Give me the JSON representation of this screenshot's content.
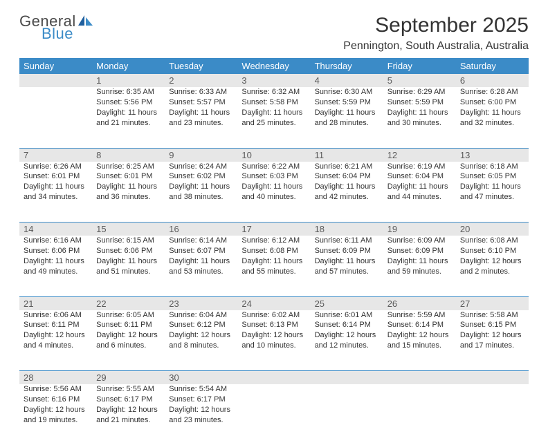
{
  "logo": {
    "top": "General",
    "bottom": "Blue"
  },
  "title": "September 2025",
  "subtitle": "Pennington, South Australia, Australia",
  "colors": {
    "header_bg": "#3b8bc7",
    "header_text": "#ffffff",
    "daynum_bg": "#e7e7e7",
    "daynum_text": "#5a5a5a",
    "body_text": "#333333",
    "row_border": "#3b8bc7",
    "page_bg": "#ffffff"
  },
  "fonts": {
    "title_size": 30,
    "subtitle_size": 16,
    "dayheader_size": 13,
    "daynum_size": 13,
    "cell_size": 11
  },
  "day_headers": [
    "Sunday",
    "Monday",
    "Tuesday",
    "Wednesday",
    "Thursday",
    "Friday",
    "Saturday"
  ],
  "weeks": [
    [
      null,
      {
        "n": "1",
        "sr": "6:35 AM",
        "ss": "5:56 PM",
        "dl": "11 hours and 21 minutes."
      },
      {
        "n": "2",
        "sr": "6:33 AM",
        "ss": "5:57 PM",
        "dl": "11 hours and 23 minutes."
      },
      {
        "n": "3",
        "sr": "6:32 AM",
        "ss": "5:58 PM",
        "dl": "11 hours and 25 minutes."
      },
      {
        "n": "4",
        "sr": "6:30 AM",
        "ss": "5:59 PM",
        "dl": "11 hours and 28 minutes."
      },
      {
        "n": "5",
        "sr": "6:29 AM",
        "ss": "5:59 PM",
        "dl": "11 hours and 30 minutes."
      },
      {
        "n": "6",
        "sr": "6:28 AM",
        "ss": "6:00 PM",
        "dl": "11 hours and 32 minutes."
      }
    ],
    [
      {
        "n": "7",
        "sr": "6:26 AM",
        "ss": "6:01 PM",
        "dl": "11 hours and 34 minutes."
      },
      {
        "n": "8",
        "sr": "6:25 AM",
        "ss": "6:01 PM",
        "dl": "11 hours and 36 minutes."
      },
      {
        "n": "9",
        "sr": "6:24 AM",
        "ss": "6:02 PM",
        "dl": "11 hours and 38 minutes."
      },
      {
        "n": "10",
        "sr": "6:22 AM",
        "ss": "6:03 PM",
        "dl": "11 hours and 40 minutes."
      },
      {
        "n": "11",
        "sr": "6:21 AM",
        "ss": "6:04 PM",
        "dl": "11 hours and 42 minutes."
      },
      {
        "n": "12",
        "sr": "6:19 AM",
        "ss": "6:04 PM",
        "dl": "11 hours and 44 minutes."
      },
      {
        "n": "13",
        "sr": "6:18 AM",
        "ss": "6:05 PM",
        "dl": "11 hours and 47 minutes."
      }
    ],
    [
      {
        "n": "14",
        "sr": "6:16 AM",
        "ss": "6:06 PM",
        "dl": "11 hours and 49 minutes."
      },
      {
        "n": "15",
        "sr": "6:15 AM",
        "ss": "6:06 PM",
        "dl": "11 hours and 51 minutes."
      },
      {
        "n": "16",
        "sr": "6:14 AM",
        "ss": "6:07 PM",
        "dl": "11 hours and 53 minutes."
      },
      {
        "n": "17",
        "sr": "6:12 AM",
        "ss": "6:08 PM",
        "dl": "11 hours and 55 minutes."
      },
      {
        "n": "18",
        "sr": "6:11 AM",
        "ss": "6:09 PM",
        "dl": "11 hours and 57 minutes."
      },
      {
        "n": "19",
        "sr": "6:09 AM",
        "ss": "6:09 PM",
        "dl": "11 hours and 59 minutes."
      },
      {
        "n": "20",
        "sr": "6:08 AM",
        "ss": "6:10 PM",
        "dl": "12 hours and 2 minutes."
      }
    ],
    [
      {
        "n": "21",
        "sr": "6:06 AM",
        "ss": "6:11 PM",
        "dl": "12 hours and 4 minutes."
      },
      {
        "n": "22",
        "sr": "6:05 AM",
        "ss": "6:11 PM",
        "dl": "12 hours and 6 minutes."
      },
      {
        "n": "23",
        "sr": "6:04 AM",
        "ss": "6:12 PM",
        "dl": "12 hours and 8 minutes."
      },
      {
        "n": "24",
        "sr": "6:02 AM",
        "ss": "6:13 PM",
        "dl": "12 hours and 10 minutes."
      },
      {
        "n": "25",
        "sr": "6:01 AM",
        "ss": "6:14 PM",
        "dl": "12 hours and 12 minutes."
      },
      {
        "n": "26",
        "sr": "5:59 AM",
        "ss": "6:14 PM",
        "dl": "12 hours and 15 minutes."
      },
      {
        "n": "27",
        "sr": "5:58 AM",
        "ss": "6:15 PM",
        "dl": "12 hours and 17 minutes."
      }
    ],
    [
      {
        "n": "28",
        "sr": "5:56 AM",
        "ss": "6:16 PM",
        "dl": "12 hours and 19 minutes."
      },
      {
        "n": "29",
        "sr": "5:55 AM",
        "ss": "6:17 PM",
        "dl": "12 hours and 21 minutes."
      },
      {
        "n": "30",
        "sr": "5:54 AM",
        "ss": "6:17 PM",
        "dl": "12 hours and 23 minutes."
      },
      null,
      null,
      null,
      null
    ]
  ],
  "labels": {
    "sunrise": "Sunrise:",
    "sunset": "Sunset:",
    "daylight": "Daylight:"
  }
}
